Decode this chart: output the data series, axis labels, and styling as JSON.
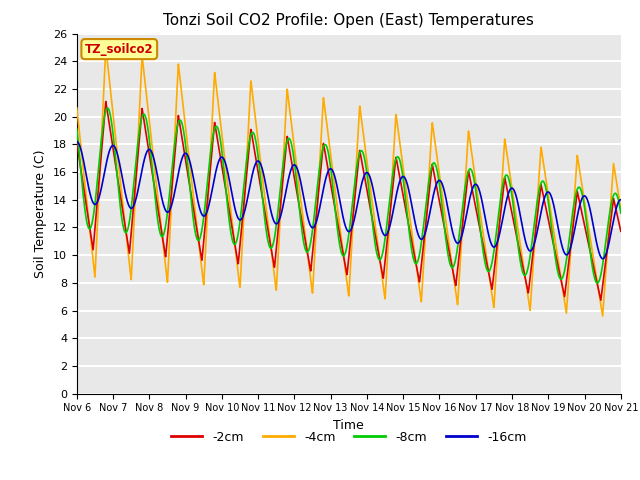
{
  "title": "Tonzi Soil CO2 Profile: Open (East) Temperatures",
  "ylabel": "Soil Temperature (C)",
  "xlabel": "Time",
  "ylim": [
    0,
    26
  ],
  "xlim": [
    0,
    15
  ],
  "x_tick_labels": [
    "Nov 6",
    "Nov 7",
    "Nov 8",
    "Nov 9",
    "Nov 10",
    "Nov 11",
    "Nov 12",
    "Nov 13",
    "Nov 14",
    "Nov 15",
    "Nov 16",
    "Nov 17",
    "Nov 18",
    "Nov 19",
    "Nov 20",
    "Nov 21"
  ],
  "legend_title": "TZ_soilco2",
  "line_colors": [
    "#dd0000",
    "#ffaa00",
    "#00cc00",
    "#0000cc"
  ],
  "line_labels": [
    "-2cm",
    "-4cm",
    "-8cm",
    "-16cm"
  ],
  "background_color": "#ffffff",
  "plot_bg_color": "#e8e8e8",
  "title_fontsize": 11,
  "axis_label_fontsize": 9,
  "legend_box_color": "#ffff99",
  "legend_box_edge": "#cc8800",
  "legend_text_color": "#cc0000",
  "grid_color": "#ffffff",
  "grid_lw": 1.5
}
